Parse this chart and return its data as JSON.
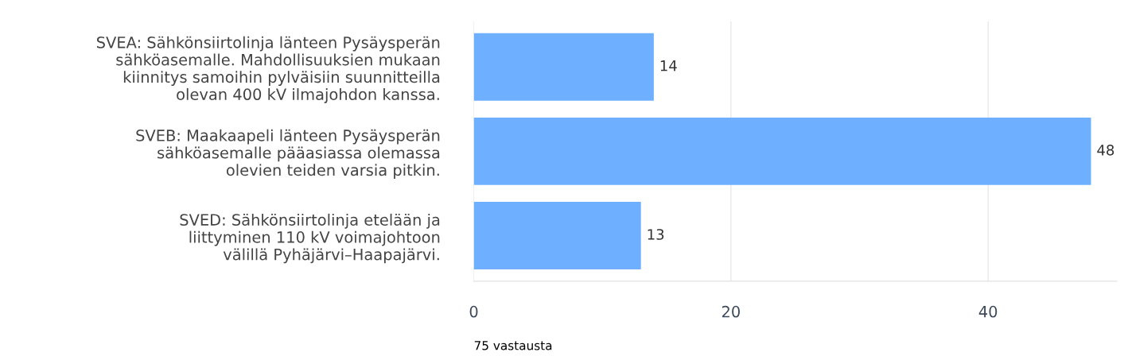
{
  "chart_data": {
    "type": "bar",
    "orientation": "horizontal",
    "categories": [
      "SVEA: Sähkönsiirtolinja länteen Pysäysperän\nsähköasemalle. Mahdollisuuksien mukaan\nkiinnitys samoihin pylväisiin suunnitteilla\nolevan 400 kV ilmajohdon kanssa.",
      "SVEB: Maakaapeli länteen Pysäysperän\nsähköasemalle pääasiassa olemassa\nolevien teiden varsia pitkin.",
      "SVED: Sähkönsiirtolinja etelään ja\nliittyminen 110 kV voimajohtoon\nvälillä Pyhäjärvi–Haapajärvi."
    ],
    "values": [
      14,
      48,
      13
    ],
    "color": "#6eb0ff",
    "xlim": [
      0,
      50
    ],
    "xticks": [
      0,
      20,
      40
    ],
    "grid": "x",
    "data_labels": true,
    "annotations": [
      "75 vastausta"
    ]
  }
}
